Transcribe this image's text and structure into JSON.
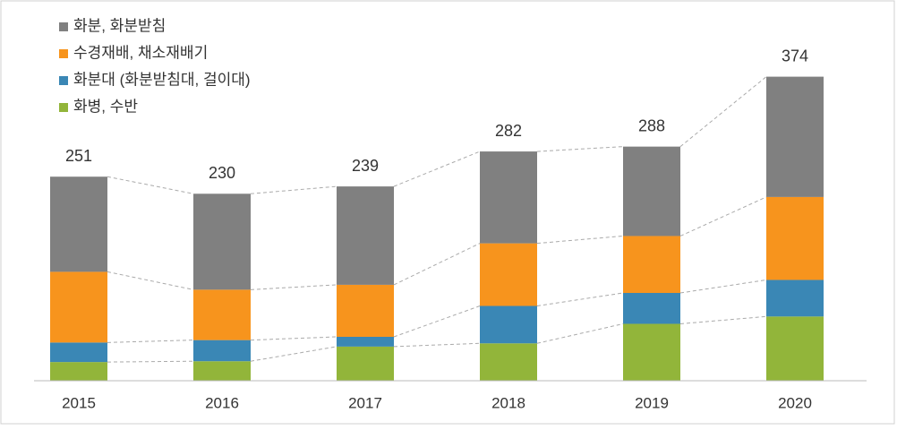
{
  "chart_data": {
    "type": "stacked_bar",
    "categories": [
      "2015",
      "2016",
      "2017",
      "2018",
      "2019",
      "2020"
    ],
    "series": [
      {
        "name": "화분, 화분받침",
        "color": "#808080",
        "values": [
          117,
          118,
          121,
          113,
          110,
          148
        ]
      },
      {
        "name": "수경재배, 채소재배기",
        "color": "#f7941d",
        "values": [
          87,
          62,
          64,
          77,
          70,
          102
        ]
      },
      {
        "name": "화분대 (화분받침대, 걸이대)",
        "color": "#3a87b5",
        "values": [
          24,
          26,
          12,
          46,
          38,
          45
        ]
      },
      {
        "name": "화병, 수반",
        "color": "#92b53a",
        "values": [
          23,
          24,
          42,
          46,
          70,
          79
        ]
      }
    ],
    "totals": [
      251,
      230,
      239,
      282,
      288,
      374
    ],
    "ylim": [
      0,
      400
    ]
  }
}
